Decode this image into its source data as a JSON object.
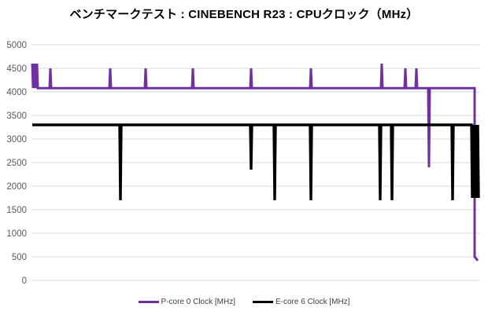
{
  "chart_data": {
    "type": "line",
    "title": "ベンチマークテスト : CINEBENCH R23 : CPUクロック（MHz）",
    "xlabel": "",
    "ylabel": "",
    "ylim": [
      0,
      5000
    ],
    "ytick_step": 500,
    "x_range": [
      0,
      569
    ],
    "grid": true,
    "legend_position": "bottom",
    "colors": {
      "grid": "#d9d9d9",
      "tick_label": "#595959",
      "title": "#000000",
      "p_core": "#7030A0",
      "e_core": "#000000"
    },
    "series": [
      {
        "name": "P-core 0 Clock [MHz]",
        "color": "#7030A0",
        "width": 3,
        "points": [
          [
            0,
            4600
          ],
          [
            1,
            4080
          ],
          [
            2,
            4600
          ],
          [
            3,
            4080
          ],
          [
            4,
            4600
          ],
          [
            5,
            4080
          ],
          [
            6,
            4600
          ],
          [
            7,
            4080
          ],
          [
            22,
            4080
          ],
          [
            23,
            4500
          ],
          [
            24,
            4080
          ],
          [
            98,
            4080
          ],
          [
            99,
            4500
          ],
          [
            100,
            4080
          ],
          [
            143,
            4080
          ],
          [
            144,
            4500
          ],
          [
            145,
            4080
          ],
          [
            203,
            4080
          ],
          [
            204,
            4500
          ],
          [
            205,
            4080
          ],
          [
            277,
            4080
          ],
          [
            278,
            4500
          ],
          [
            279,
            4080
          ],
          [
            353,
            4080
          ],
          [
            354,
            4500
          ],
          [
            355,
            4080
          ],
          [
            443,
            4080
          ],
          [
            444,
            4600
          ],
          [
            445,
            4080
          ],
          [
            473,
            4080
          ],
          [
            474,
            4500
          ],
          [
            475,
            4080
          ],
          [
            487,
            4080
          ],
          [
            488,
            4500
          ],
          [
            489,
            4080
          ],
          [
            503,
            4080
          ],
          [
            504,
            2400
          ],
          [
            505,
            4080
          ],
          [
            562,
            4080
          ],
          [
            562,
            500
          ],
          [
            566,
            420
          ]
        ]
      },
      {
        "name": "E-core 6 Clock [MHz]",
        "color": "#000000",
        "width": 3.4,
        "points": [
          [
            0,
            3300
          ],
          [
            111,
            3300
          ],
          [
            112,
            1700
          ],
          [
            113,
            3300
          ],
          [
            277,
            3300
          ],
          [
            278,
            2350
          ],
          [
            279,
            3300
          ],
          [
            307,
            3300
          ],
          [
            308,
            1700
          ],
          [
            309,
            3300
          ],
          [
            353,
            3300
          ],
          [
            354,
            1700
          ],
          [
            355,
            3300
          ],
          [
            441,
            3300
          ],
          [
            442,
            1700
          ],
          [
            443,
            3300
          ],
          [
            456,
            3300
          ],
          [
            457,
            1700
          ],
          [
            458,
            3300
          ],
          [
            533,
            3300
          ],
          [
            534,
            1700
          ],
          [
            535,
            3300
          ],
          [
            558,
            3300
          ],
          [
            559,
            1750
          ],
          [
            560,
            3300
          ],
          [
            561,
            1750
          ],
          [
            562,
            3300
          ],
          [
            563,
            1750
          ],
          [
            564,
            3300
          ],
          [
            565,
            1750
          ],
          [
            566,
            3300
          ],
          [
            567,
            1750
          ]
        ]
      }
    ]
  }
}
